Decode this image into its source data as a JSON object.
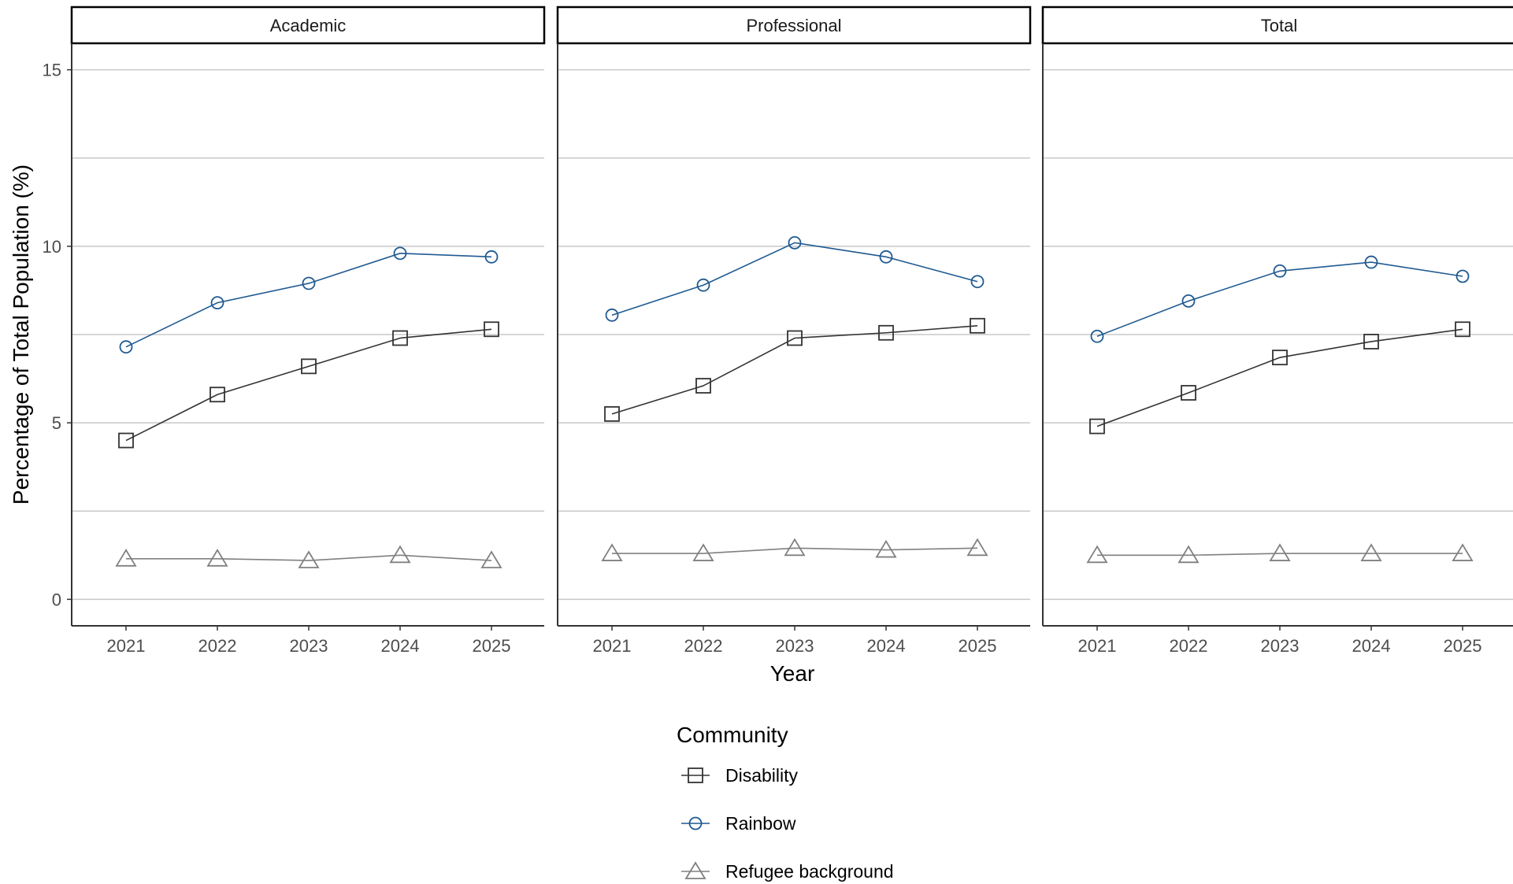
{
  "chart_data": {
    "type": "line",
    "facets": [
      "Academic",
      "Professional",
      "Total"
    ],
    "x": [
      "2021",
      "2022",
      "2023",
      "2024",
      "2025"
    ],
    "xlabel": "Year",
    "ylabel": "Percentage of Total Population (%)",
    "ylim": [
      -0.75,
      15.75
    ],
    "yticks": [
      0,
      5,
      10,
      15
    ],
    "grid": "horizontal",
    "legend": {
      "title": "Community",
      "position": "bottom",
      "entries": [
        "Disability",
        "Rainbow",
        "Refugee background"
      ]
    },
    "series": [
      {
        "name": "Disability",
        "marker": "square",
        "color": "#333333",
        "values": {
          "Academic": [
            4.5,
            5.8,
            6.6,
            7.4,
            7.65
          ],
          "Professional": [
            5.25,
            6.05,
            7.4,
            7.55,
            7.75
          ],
          "Total": [
            4.9,
            5.85,
            6.85,
            7.3,
            7.65
          ]
        }
      },
      {
        "name": "Rainbow",
        "marker": "circle",
        "color": "#1f5a91",
        "values": {
          "Academic": [
            7.15,
            8.4,
            8.95,
            9.8,
            9.7
          ],
          "Professional": [
            8.05,
            8.9,
            10.1,
            9.7,
            9.0
          ],
          "Total": [
            7.45,
            8.45,
            9.3,
            9.55,
            9.15
          ]
        }
      },
      {
        "name": "Refugee background",
        "marker": "triangle",
        "color": "#808080",
        "values": {
          "Academic": [
            1.15,
            1.15,
            1.1,
            1.25,
            1.1
          ],
          "Professional": [
            1.3,
            1.3,
            1.45,
            1.4,
            1.45
          ],
          "Total": [
            1.25,
            1.25,
            1.3,
            1.3,
            1.3
          ]
        }
      }
    ]
  }
}
